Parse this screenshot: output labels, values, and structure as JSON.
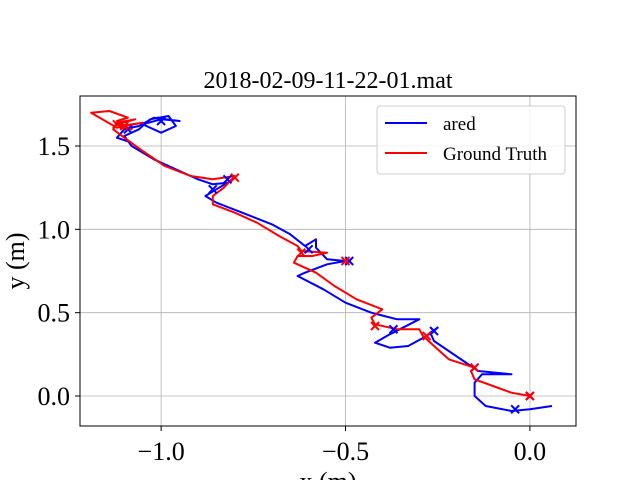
{
  "chart_data": {
    "type": "line",
    "title": "2018-02-09-11-22-01.mat",
    "xlabel": "x (m)",
    "ylabel": "y (m)",
    "xlim": [
      -1.22,
      0.125
    ],
    "ylim": [
      -0.18,
      1.8
    ],
    "xticks": [
      -1.0,
      -0.5,
      0.0
    ],
    "xtick_labels": [
      "−1.0",
      "−0.5",
      "0.0"
    ],
    "yticks": [
      0.0,
      0.5,
      1.0,
      1.5
    ],
    "ytick_labels": [
      "0.0",
      "0.5",
      "1.0",
      "1.5"
    ],
    "grid": true,
    "legend": "top-right",
    "series": [
      {
        "name": "ared",
        "color": "#0000ff",
        "values": [
          [
            0.06,
            -0.06
          ],
          [
            0.0,
            -0.08
          ],
          [
            -0.05,
            -0.09
          ],
          [
            -0.12,
            -0.06
          ],
          [
            -0.15,
            0.0
          ],
          [
            -0.15,
            0.08
          ],
          [
            -0.13,
            0.13
          ],
          [
            -0.05,
            0.13
          ],
          [
            -0.14,
            0.15
          ],
          [
            -0.2,
            0.24
          ],
          [
            -0.26,
            0.33
          ],
          [
            -0.27,
            0.38
          ],
          [
            -0.25,
            0.41
          ],
          [
            -0.28,
            0.36
          ],
          [
            -0.33,
            0.3
          ],
          [
            -0.38,
            0.29
          ],
          [
            -0.42,
            0.32
          ],
          [
            -0.38,
            0.37
          ],
          [
            -0.3,
            0.46
          ],
          [
            -0.36,
            0.46
          ],
          [
            -0.43,
            0.5
          ],
          [
            -0.5,
            0.56
          ],
          [
            -0.56,
            0.64
          ],
          [
            -0.63,
            0.72
          ],
          [
            -0.61,
            0.74
          ],
          [
            -0.55,
            0.79
          ],
          [
            -0.5,
            0.81
          ],
          [
            -0.55,
            0.82
          ],
          [
            -0.58,
            0.89
          ],
          [
            -0.58,
            0.94
          ],
          [
            -0.61,
            0.9
          ],
          [
            -0.65,
            0.97
          ],
          [
            -0.7,
            1.03
          ],
          [
            -0.78,
            1.1
          ],
          [
            -0.85,
            1.16
          ],
          [
            -0.88,
            1.2
          ],
          [
            -0.85,
            1.24
          ],
          [
            -0.82,
            1.28
          ],
          [
            -0.86,
            1.27
          ],
          [
            -0.9,
            1.3
          ],
          [
            -0.95,
            1.35
          ],
          [
            -1.02,
            1.42
          ],
          [
            -1.08,
            1.5
          ],
          [
            -1.1,
            1.56
          ],
          [
            -1.06,
            1.6
          ],
          [
            -1.03,
            1.66
          ],
          [
            -0.98,
            1.68
          ],
          [
            -0.96,
            1.62
          ],
          [
            -1.0,
            1.58
          ],
          [
            -1.05,
            1.63
          ],
          [
            -1.0,
            1.66
          ],
          [
            -0.95,
            1.65
          ],
          [
            -1.02,
            1.67
          ],
          [
            -1.06,
            1.62
          ],
          [
            -1.1,
            1.6
          ],
          [
            -1.12,
            1.55
          ],
          [
            -1.08,
            1.52
          ]
        ],
        "markers": [
          [
            0.0,
            0.0
          ],
          [
            -0.04,
            -0.08
          ],
          [
            -0.15,
            0.17
          ],
          [
            -0.26,
            0.39
          ],
          [
            -0.37,
            0.4
          ],
          [
            -0.49,
            0.81
          ],
          [
            -0.6,
            0.88
          ],
          [
            -0.82,
            1.3
          ],
          [
            -0.86,
            1.24
          ],
          [
            -1.0,
            1.65
          ],
          [
            -1.09,
            1.6
          ]
        ]
      },
      {
        "name": "Ground Truth",
        "color": "#ff0000",
        "values": [
          [
            0.0,
            0.0
          ],
          [
            -0.05,
            0.02
          ],
          [
            -0.1,
            0.06
          ],
          [
            -0.15,
            0.1
          ],
          [
            -0.16,
            0.15
          ],
          [
            -0.15,
            0.17
          ],
          [
            -0.22,
            0.22
          ],
          [
            -0.29,
            0.36
          ],
          [
            -0.3,
            0.4
          ],
          [
            -0.36,
            0.4
          ],
          [
            -0.42,
            0.43
          ],
          [
            -0.43,
            0.47
          ],
          [
            -0.4,
            0.52
          ],
          [
            -0.47,
            0.58
          ],
          [
            -0.53,
            0.66
          ],
          [
            -0.58,
            0.74
          ],
          [
            -0.64,
            0.8
          ],
          [
            -0.63,
            0.84
          ],
          [
            -0.59,
            0.84
          ],
          [
            -0.55,
            0.86
          ],
          [
            -0.62,
            0.87
          ],
          [
            -0.63,
            0.9
          ],
          [
            -0.68,
            0.96
          ],
          [
            -0.74,
            1.04
          ],
          [
            -0.8,
            1.1
          ],
          [
            -0.86,
            1.15
          ],
          [
            -0.86,
            1.2
          ],
          [
            -0.83,
            1.25
          ],
          [
            -0.8,
            1.32
          ],
          [
            -0.86,
            1.3
          ],
          [
            -0.92,
            1.32
          ],
          [
            -0.99,
            1.38
          ],
          [
            -1.05,
            1.47
          ],
          [
            -1.1,
            1.55
          ],
          [
            -1.13,
            1.6
          ],
          [
            -1.12,
            1.64
          ],
          [
            -1.07,
            1.66
          ],
          [
            -1.12,
            1.63
          ],
          [
            -1.08,
            1.6
          ],
          [
            -1.11,
            1.62
          ],
          [
            -1.05,
            1.64
          ],
          [
            -1.12,
            1.61
          ],
          [
            -1.19,
            1.7
          ],
          [
            -1.14,
            1.71
          ],
          [
            -1.09,
            1.67
          ],
          [
            -1.12,
            1.65
          ],
          [
            -1.1,
            1.6
          ]
        ],
        "markers": [
          [
            0.0,
            0.0
          ],
          [
            -0.15,
            0.17
          ],
          [
            -0.28,
            0.36
          ],
          [
            -0.42,
            0.42
          ],
          [
            -0.5,
            0.81
          ],
          [
            -0.62,
            0.86
          ],
          [
            -0.8,
            1.31
          ],
          [
            -1.1,
            1.62
          ],
          [
            -1.12,
            1.63
          ]
        ]
      }
    ]
  }
}
